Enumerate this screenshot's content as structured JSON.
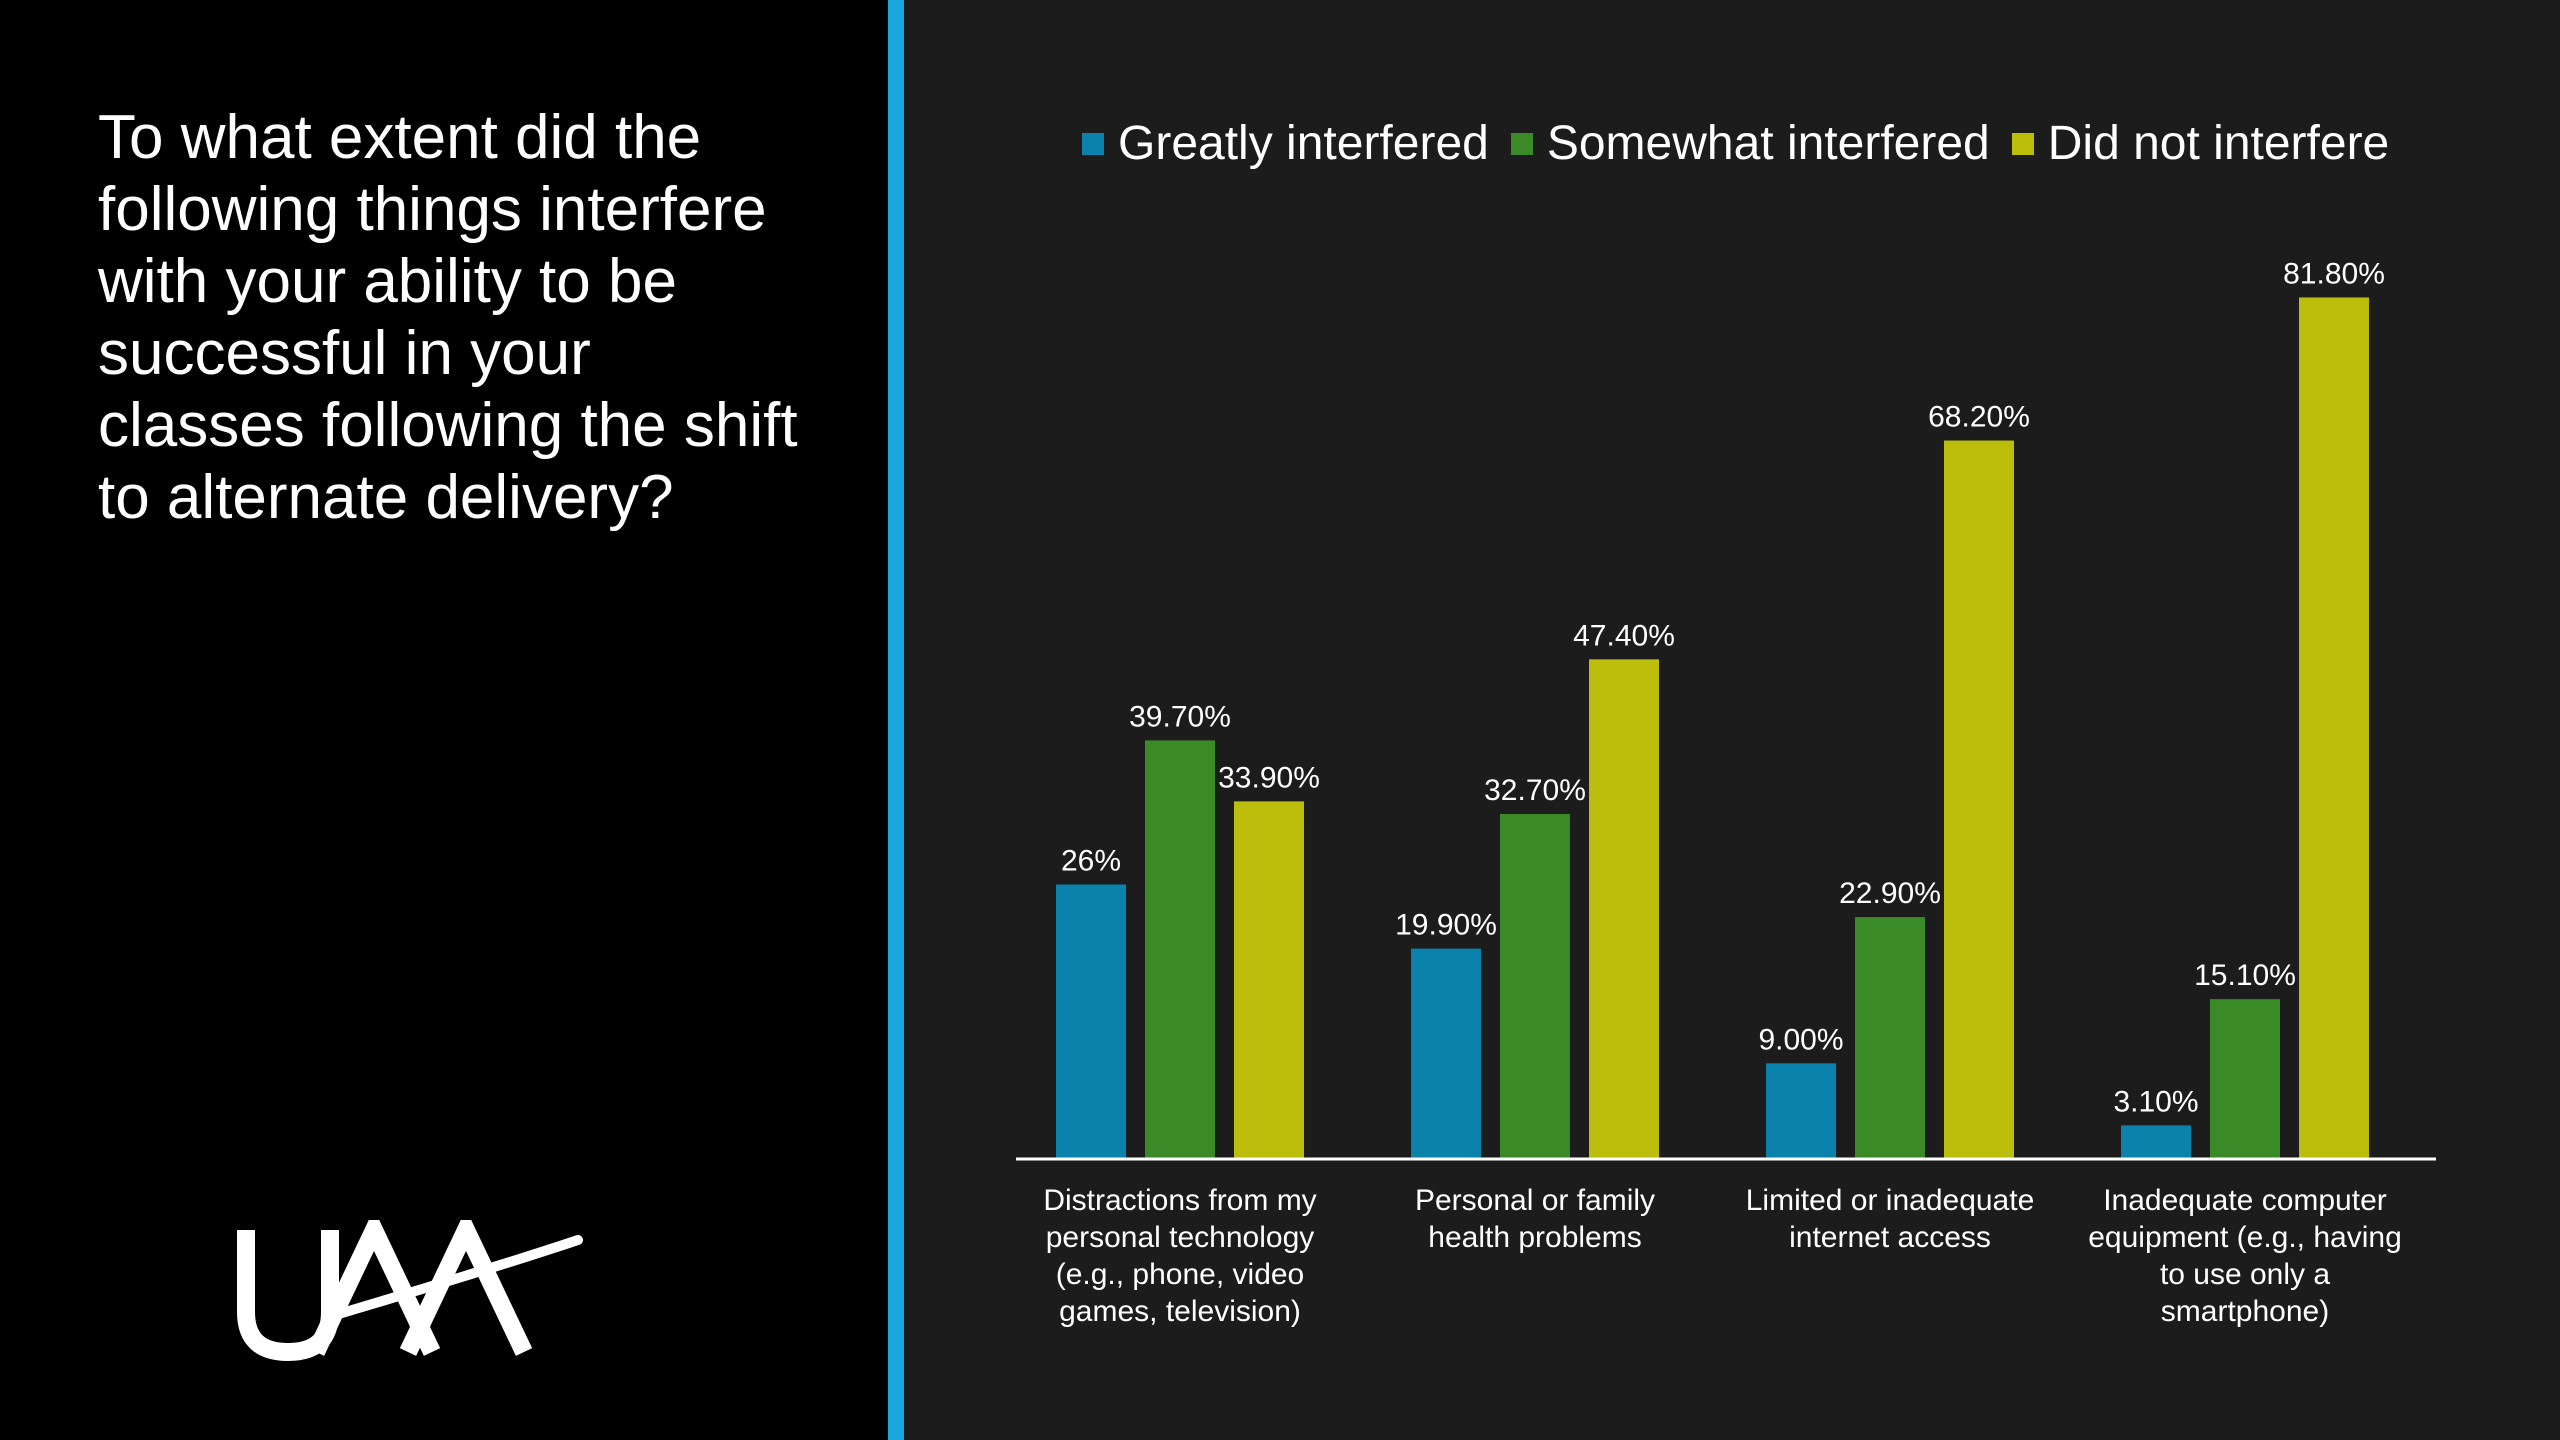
{
  "slide": {
    "question": "To what extent did the following things interfere with your ability to be successful in your classes following the shift to alternate delivery?",
    "logo_text": "UAA",
    "accent_color": "#1aa7e0"
  },
  "chart_data": {
    "type": "bar",
    "title": "",
    "xlabel": "",
    "ylabel": "",
    "ylim": [
      0,
      90
    ],
    "grid": false,
    "legend_position": "top",
    "categories": [
      [
        "Distractions from my",
        "personal technology",
        "(e.g., phone, video",
        "games, television)"
      ],
      [
        "Personal or family",
        "health problems"
      ],
      [
        "Limited or inadequate",
        "internet access"
      ],
      [
        "Inadequate computer",
        "equipment (e.g., having",
        "to use only a",
        "smartphone)"
      ]
    ],
    "series": [
      {
        "name": "Greatly interfered",
        "color": "#0a82ab",
        "values": [
          26,
          19.9,
          9.0,
          3.1
        ],
        "labels": [
          "26%",
          "19.90%",
          "9.00%",
          "3.10%"
        ]
      },
      {
        "name": "Somewhat interfered",
        "color": "#3a8a28",
        "values": [
          39.7,
          32.7,
          22.9,
          15.1
        ],
        "labels": [
          "39.70%",
          "32.70%",
          "22.90%",
          "15.10%"
        ]
      },
      {
        "name": "Did not interfere",
        "color": "#bdbd0c",
        "values": [
          33.9,
          47.4,
          68.2,
          81.8
        ],
        "labels": [
          "33.90%",
          "47.40%",
          "68.20%",
          "81.80%"
        ]
      }
    ]
  }
}
